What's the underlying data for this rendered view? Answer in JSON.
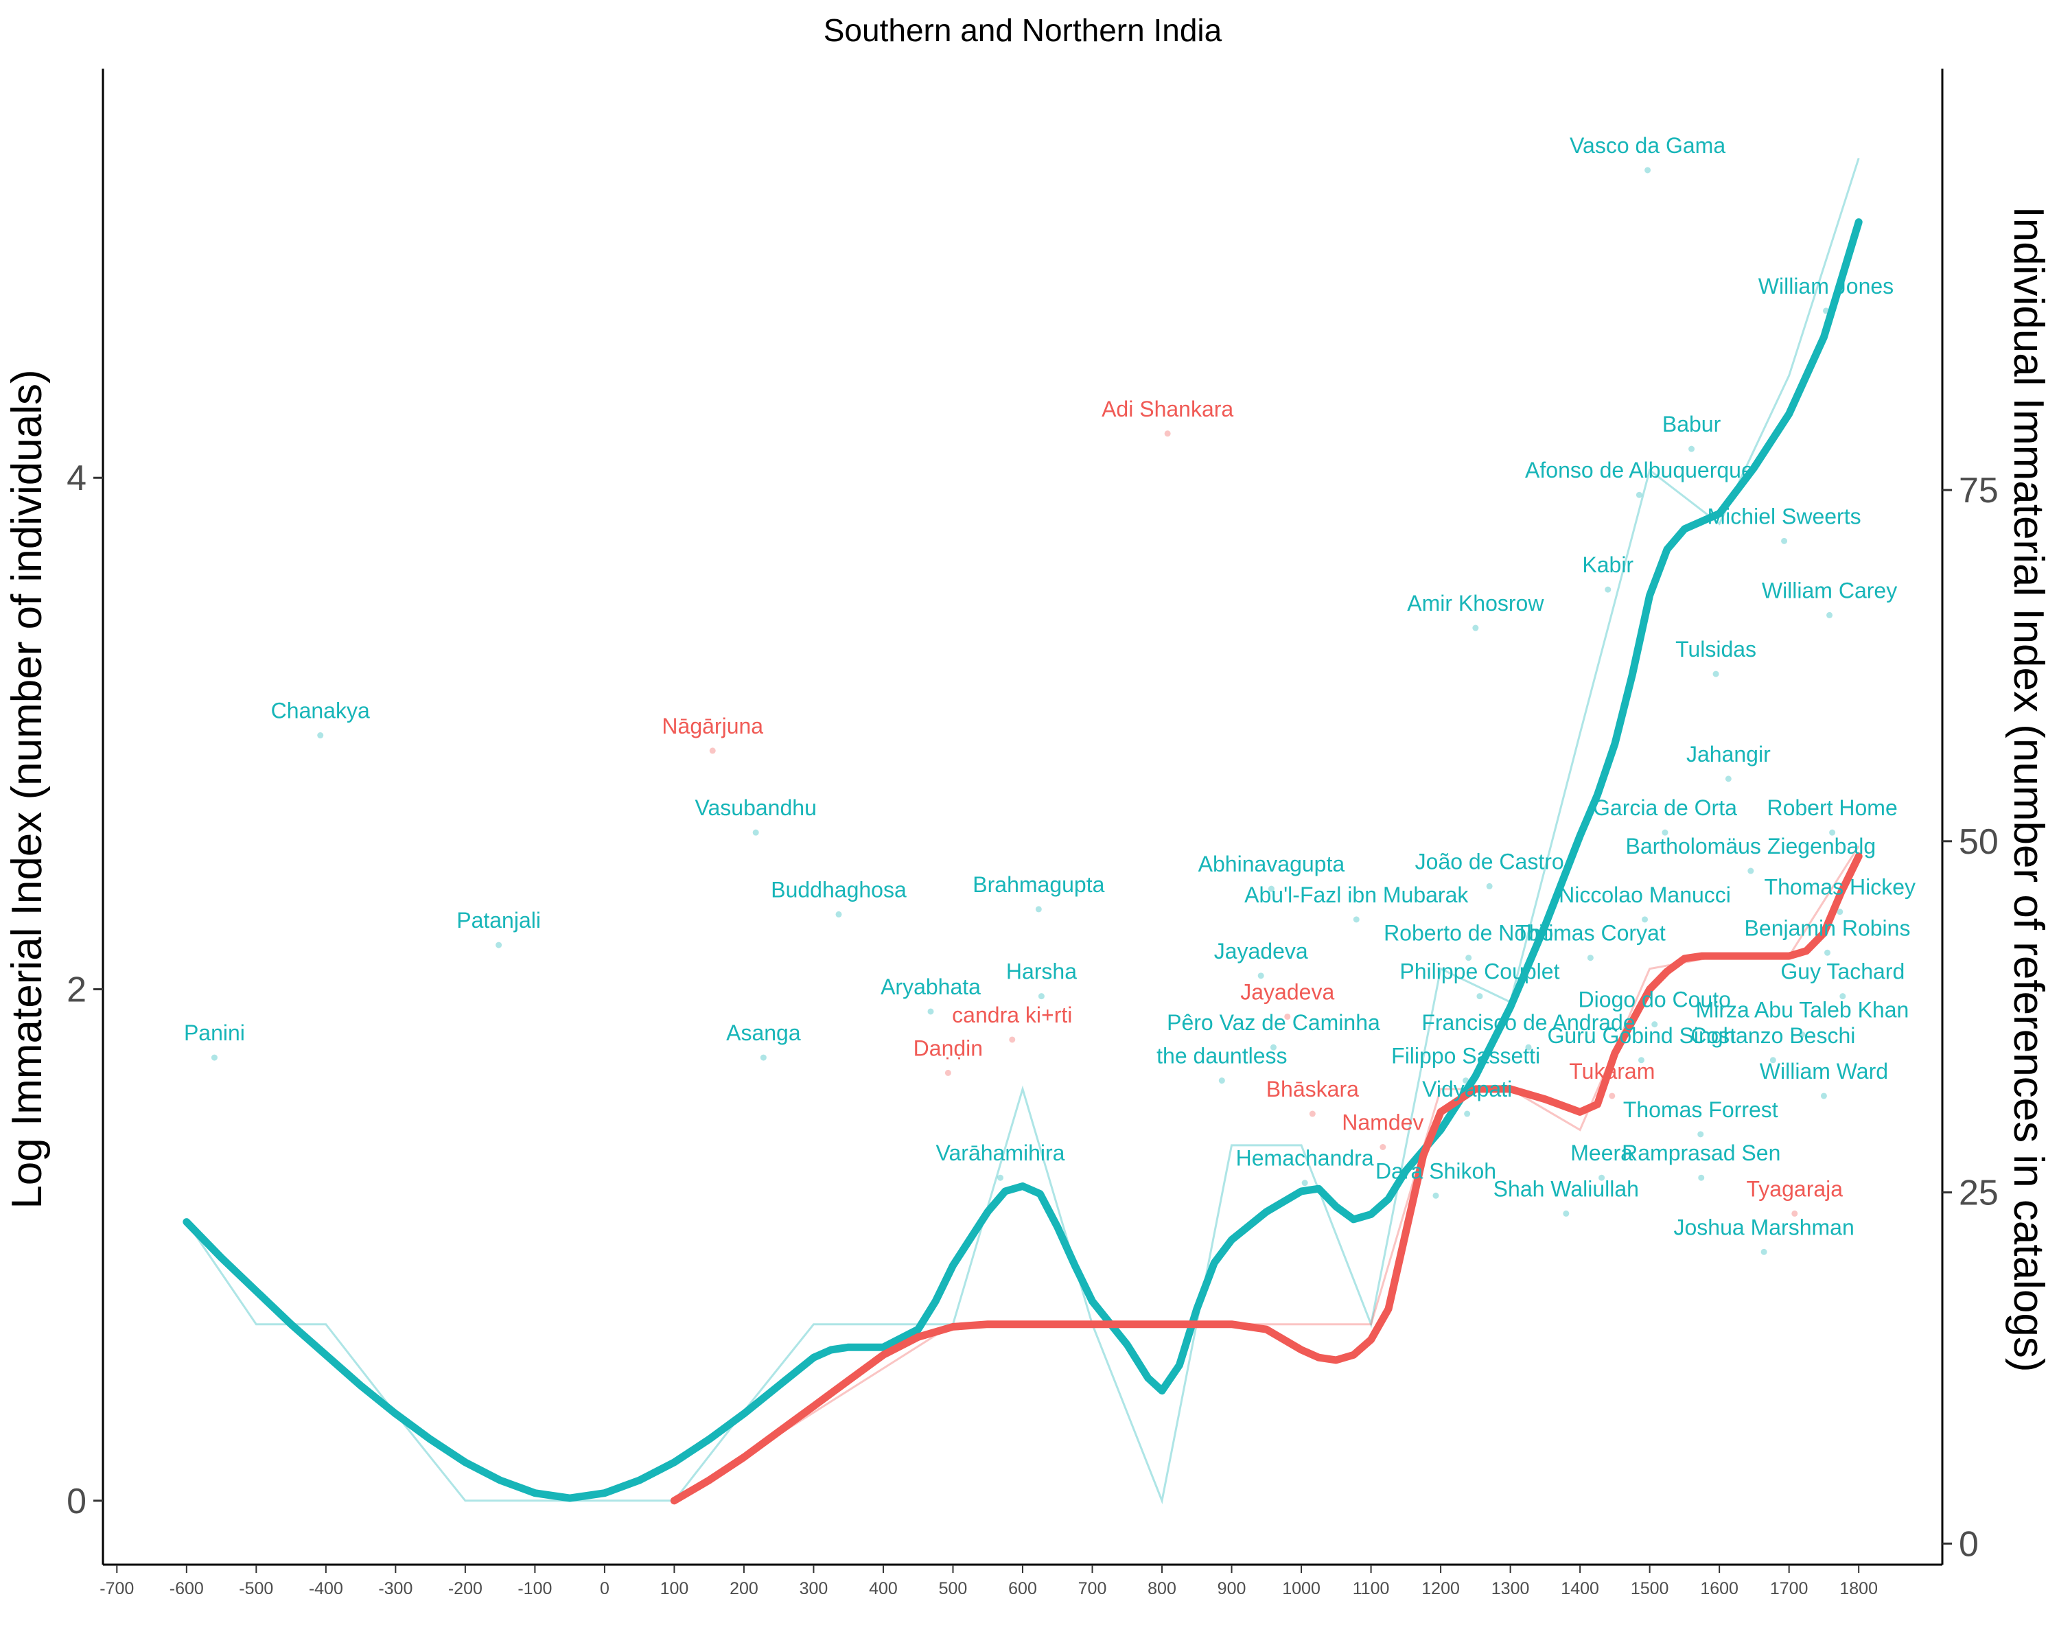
{
  "chart_data": {
    "type": "line",
    "title": "Southern and Northern India",
    "ylabel": "Log Immaterial Index (number of individuals)",
    "y2label": "Individual Immaterial Index (number of references in catalogs)",
    "xlim": [
      -720,
      1920
    ],
    "ylim": [
      -0.25,
      5.6
    ],
    "y2lim": [
      -1.5,
      105
    ],
    "x_ticks": [
      -700,
      -600,
      -500,
      -400,
      -300,
      -200,
      -100,
      0,
      100,
      200,
      300,
      400,
      500,
      600,
      700,
      800,
      900,
      1000,
      1100,
      1200,
      1300,
      1400,
      1500,
      1600,
      1700,
      1800
    ],
    "y_ticks": [
      0,
      2,
      4
    ],
    "y2_ticks": [
      0,
      25,
      50,
      75
    ],
    "grid": false,
    "colors": {
      "teal": "#17b5b8",
      "red": "#f05a55"
    },
    "series": [
      {
        "color": "#17b5b8",
        "smooth": [
          [
            -600,
            1.09
          ],
          [
            -550,
            0.95
          ],
          [
            -500,
            0.82
          ],
          [
            -450,
            0.69
          ],
          [
            -400,
            0.57
          ],
          [
            -350,
            0.45
          ],
          [
            -300,
            0.34
          ],
          [
            -250,
            0.24
          ],
          [
            -200,
            0.15
          ],
          [
            -150,
            0.08
          ],
          [
            -100,
            0.03
          ],
          [
            -50,
            0.01
          ],
          [
            0,
            0.03
          ],
          [
            50,
            0.08
          ],
          [
            100,
            0.15
          ],
          [
            150,
            0.24
          ],
          [
            200,
            0.34
          ],
          [
            250,
            0.45
          ],
          [
            300,
            0.56
          ],
          [
            325,
            0.59
          ],
          [
            350,
            0.6
          ],
          [
            400,
            0.6
          ],
          [
            450,
            0.67
          ],
          [
            475,
            0.78
          ],
          [
            500,
            0.92
          ],
          [
            550,
            1.13
          ],
          [
            575,
            1.21
          ],
          [
            600,
            1.23
          ],
          [
            625,
            1.2
          ],
          [
            650,
            1.07
          ],
          [
            675,
            0.92
          ],
          [
            700,
            0.78
          ],
          [
            750,
            0.61
          ],
          [
            780,
            0.48
          ],
          [
            800,
            0.43
          ],
          [
            825,
            0.53
          ],
          [
            850,
            0.75
          ],
          [
            875,
            0.93
          ],
          [
            900,
            1.02
          ],
          [
            950,
            1.13
          ],
          [
            1000,
            1.21
          ],
          [
            1025,
            1.22
          ],
          [
            1050,
            1.15
          ],
          [
            1075,
            1.1
          ],
          [
            1100,
            1.12
          ],
          [
            1125,
            1.18
          ],
          [
            1150,
            1.29
          ],
          [
            1200,
            1.45
          ],
          [
            1250,
            1.66
          ],
          [
            1300,
            1.93
          ],
          [
            1350,
            2.25
          ],
          [
            1400,
            2.6
          ],
          [
            1425,
            2.76
          ],
          [
            1450,
            2.96
          ],
          [
            1475,
            3.23
          ],
          [
            1500,
            3.54
          ],
          [
            1525,
            3.72
          ],
          [
            1550,
            3.8
          ],
          [
            1600,
            3.86
          ],
          [
            1650,
            4.04
          ],
          [
            1700,
            4.25
          ],
          [
            1750,
            4.55
          ],
          [
            1800,
            5.0
          ]
        ],
        "raw": [
          [
            -600,
            1.09
          ],
          [
            -500,
            0.69
          ],
          [
            -400,
            0.69
          ],
          [
            -300,
            0.34
          ],
          [
            -200,
            0.0
          ],
          [
            -100,
            0.0
          ],
          [
            0,
            0.0
          ],
          [
            100,
            0.0
          ],
          [
            200,
            0.35
          ],
          [
            300,
            0.69
          ],
          [
            400,
            0.69
          ],
          [
            500,
            0.69
          ],
          [
            600,
            1.61
          ],
          [
            700,
            0.69
          ],
          [
            800,
            0.0
          ],
          [
            900,
            1.39
          ],
          [
            1000,
            1.39
          ],
          [
            1100,
            0.69
          ],
          [
            1200,
            2.08
          ],
          [
            1300,
            1.95
          ],
          [
            1400,
            3.0
          ],
          [
            1500,
            4.03
          ],
          [
            1600,
            3.82
          ],
          [
            1700,
            4.4
          ],
          [
            1800,
            5.25
          ]
        ]
      },
      {
        "color": "#f05a55",
        "smooth": [
          [
            100,
            0.0
          ],
          [
            150,
            0.08
          ],
          [
            200,
            0.17
          ],
          [
            250,
            0.27
          ],
          [
            300,
            0.37
          ],
          [
            350,
            0.47
          ],
          [
            400,
            0.57
          ],
          [
            450,
            0.64
          ],
          [
            500,
            0.68
          ],
          [
            550,
            0.69
          ],
          [
            600,
            0.69
          ],
          [
            700,
            0.69
          ],
          [
            800,
            0.69
          ],
          [
            900,
            0.69
          ],
          [
            950,
            0.67
          ],
          [
            975,
            0.63
          ],
          [
            1000,
            0.59
          ],
          [
            1025,
            0.56
          ],
          [
            1050,
            0.55
          ],
          [
            1075,
            0.57
          ],
          [
            1100,
            0.63
          ],
          [
            1125,
            0.75
          ],
          [
            1150,
            1.05
          ],
          [
            1175,
            1.35
          ],
          [
            1200,
            1.52
          ],
          [
            1250,
            1.61
          ],
          [
            1300,
            1.61
          ],
          [
            1350,
            1.57
          ],
          [
            1400,
            1.52
          ],
          [
            1425,
            1.55
          ],
          [
            1450,
            1.75
          ],
          [
            1500,
            2.0
          ],
          [
            1525,
            2.07
          ],
          [
            1550,
            2.12
          ],
          [
            1575,
            2.13
          ],
          [
            1600,
            2.13
          ],
          [
            1650,
            2.13
          ],
          [
            1700,
            2.13
          ],
          [
            1725,
            2.15
          ],
          [
            1750,
            2.22
          ],
          [
            1775,
            2.38
          ],
          [
            1800,
            2.52
          ]
        ],
        "raw": [
          [
            100,
            0.0
          ],
          [
            500,
            0.69
          ],
          [
            600,
            0.69
          ],
          [
            700,
            0.69
          ],
          [
            800,
            0.69
          ],
          [
            900,
            0.69
          ],
          [
            1000,
            0.69
          ],
          [
            1100,
            0.69
          ],
          [
            1200,
            1.61
          ],
          [
            1300,
            1.61
          ],
          [
            1400,
            1.45
          ],
          [
            1500,
            2.08
          ],
          [
            1600,
            2.13
          ],
          [
            1700,
            2.13
          ],
          [
            1800,
            2.56
          ]
        ]
      }
    ],
    "labels": [
      {
        "text": "Vasco da Gama",
        "x": 1497,
        "y": 5.27,
        "c": "teal"
      },
      {
        "text": "William Jones",
        "x": 1753,
        "y": 4.72,
        "c": "teal"
      },
      {
        "text": "Adi Shankara",
        "x": 808,
        "y": 4.24,
        "c": "red"
      },
      {
        "text": "Babur",
        "x": 1560,
        "y": 4.18,
        "c": "teal"
      },
      {
        "text": "Afonso de Albuquerque",
        "x": 1485,
        "y": 4.0,
        "c": "teal"
      },
      {
        "text": "Michiel Sweerts",
        "x": 1693,
        "y": 3.82,
        "c": "teal"
      },
      {
        "text": "Kabir",
        "x": 1440,
        "y": 3.63,
        "c": "teal"
      },
      {
        "text": "William Carey",
        "x": 1758,
        "y": 3.53,
        "c": "teal"
      },
      {
        "text": "Amir Khosrow",
        "x": 1250,
        "y": 3.48,
        "c": "teal"
      },
      {
        "text": "Tulsidas",
        "x": 1595,
        "y": 3.3,
        "c": "teal"
      },
      {
        "text": "Chanakya",
        "x": -408,
        "y": 3.06,
        "c": "teal"
      },
      {
        "text": "Nāgārjuna",
        "x": 155,
        "y": 3.0,
        "c": "red"
      },
      {
        "text": "Jahangir",
        "x": 1613,
        "y": 2.89,
        "c": "teal"
      },
      {
        "text": "Garcia de Orta",
        "x": 1522,
        "y": 2.68,
        "c": "teal"
      },
      {
        "text": "Robert Home",
        "x": 1762,
        "y": 2.68,
        "c": "teal"
      },
      {
        "text": "Vasubandhu",
        "x": 217,
        "y": 2.68,
        "c": "teal"
      },
      {
        "text": "Bartholomäus Ziegenbalg",
        "x": 1645,
        "y": 2.53,
        "c": "teal"
      },
      {
        "text": "João de Castro",
        "x": 1270,
        "y": 2.47,
        "c": "teal"
      },
      {
        "text": "Abhinavagupta",
        "x": 957,
        "y": 2.46,
        "c": "teal"
      },
      {
        "text": "Thomas Hickey",
        "x": 1773,
        "y": 2.37,
        "c": "teal"
      },
      {
        "text": "Buddhaghosa",
        "x": 336,
        "y": 2.36,
        "c": "teal"
      },
      {
        "text": "Brahmagupta",
        "x": 623,
        "y": 2.38,
        "c": "teal"
      },
      {
        "text": "Abu'l-Fazl ibn Mubarak",
        "x": 1079,
        "y": 2.34,
        "c": "teal"
      },
      {
        "text": "Niccolao Manucci",
        "x": 1493,
        "y": 2.34,
        "c": "teal"
      },
      {
        "text": "Patanjali",
        "x": -152,
        "y": 2.24,
        "c": "teal"
      },
      {
        "text": "Benjamin Robins",
        "x": 1755,
        "y": 2.21,
        "c": "teal"
      },
      {
        "text": "Roberto de Nobili",
        "x": 1240,
        "y": 2.19,
        "c": "teal"
      },
      {
        "text": "Thomas Coryat",
        "x": 1415,
        "y": 2.19,
        "c": "teal"
      },
      {
        "text": "Jayadeva",
        "x": 942,
        "y": 2.12,
        "c": "teal"
      },
      {
        "text": "Harsha",
        "x": 627,
        "y": 2.04,
        "c": "teal"
      },
      {
        "text": "Philippe Couplet",
        "x": 1256,
        "y": 2.04,
        "c": "teal"
      },
      {
        "text": "Guy Tachard",
        "x": 1777,
        "y": 2.04,
        "c": "teal"
      },
      {
        "text": "Aryabhata",
        "x": 468,
        "y": 1.98,
        "c": "teal"
      },
      {
        "text": "Jayadeva",
        "x": 980,
        "y": 1.96,
        "c": "red"
      },
      {
        "text": "Diogo do Couto",
        "x": 1507,
        "y": 1.93,
        "c": "teal"
      },
      {
        "text": "Mirza Abu Taleb Khan",
        "x": 1719,
        "y": 1.89,
        "c": "teal"
      },
      {
        "text": "candra ki+rti",
        "x": 585,
        "y": 1.87,
        "c": "red"
      },
      {
        "text": "Pêro Vaz de Caminha",
        "x": 960,
        "y": 1.84,
        "c": "teal"
      },
      {
        "text": "Francisco de Andrade",
        "x": 1326,
        "y": 1.84,
        "c": "teal"
      },
      {
        "text": "Panini",
        "x": -560,
        "y": 1.8,
        "c": "teal"
      },
      {
        "text": "Asanga",
        "x": 228,
        "y": 1.8,
        "c": "teal"
      },
      {
        "text": "Guru Gobind Singh",
        "x": 1488,
        "y": 1.79,
        "c": "teal"
      },
      {
        "text": "Costanzo Beschi",
        "x": 1677,
        "y": 1.79,
        "c": "teal"
      },
      {
        "text": "Daṇḍin",
        "x": 493,
        "y": 1.74,
        "c": "red"
      },
      {
        "text": "the dauntless",
        "x": 886,
        "y": 1.71,
        "c": "teal"
      },
      {
        "text": "Filippo Sassetti",
        "x": 1236,
        "y": 1.71,
        "c": "teal"
      },
      {
        "text": "Tukaram",
        "x": 1446,
        "y": 1.65,
        "c": "red"
      },
      {
        "text": "William Ward",
        "x": 1750,
        "y": 1.65,
        "c": "teal"
      },
      {
        "text": "Bhāskara",
        "x": 1016,
        "y": 1.58,
        "c": "red"
      },
      {
        "text": "Vidyapati",
        "x": 1238,
        "y": 1.58,
        "c": "teal"
      },
      {
        "text": "Thomas Forrest",
        "x": 1573,
        "y": 1.5,
        "c": "teal"
      },
      {
        "text": "Namdev",
        "x": 1117,
        "y": 1.45,
        "c": "red"
      },
      {
        "text": "Varāhamihira",
        "x": 568,
        "y": 1.33,
        "c": "teal"
      },
      {
        "text": "Hemachandra",
        "x": 1005,
        "y": 1.31,
        "c": "teal"
      },
      {
        "text": "Meera",
        "x": 1431,
        "y": 1.33,
        "c": "teal"
      },
      {
        "text": "Ramprasad Sen",
        "x": 1574,
        "y": 1.33,
        "c": "teal"
      },
      {
        "text": "Dara Shikoh",
        "x": 1193,
        "y": 1.26,
        "c": "teal"
      },
      {
        "text": "Shah Waliullah",
        "x": 1380,
        "y": 1.19,
        "c": "teal"
      },
      {
        "text": "Tyagaraja",
        "x": 1708,
        "y": 1.19,
        "c": "red"
      },
      {
        "text": "Joshua Marshman",
        "x": 1664,
        "y": 1.04,
        "c": "teal"
      }
    ]
  }
}
